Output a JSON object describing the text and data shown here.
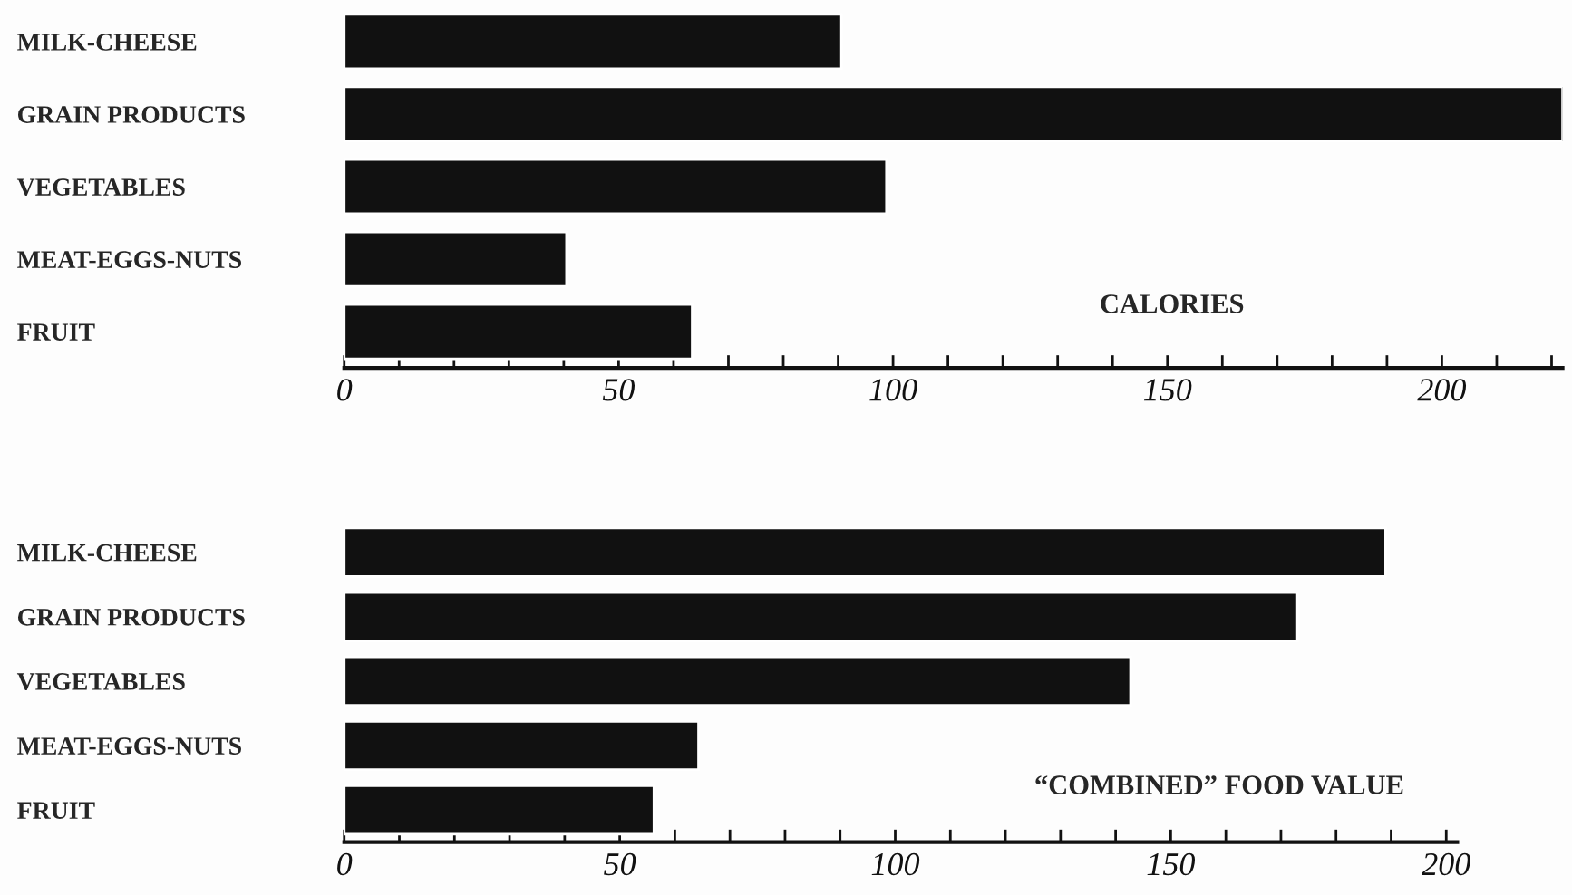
{
  "chart_data": [
    {
      "type": "bar",
      "orientation": "horizontal",
      "xlabel": "CALORIES",
      "categories": [
        "MILK-CHEESE",
        "GRAIN PRODUCTS",
        "VEGETABLES",
        "MEAT-EGGS-NUTS",
        "FRUIT"
      ],
      "values": [
        90.6,
        222,
        98.8,
        40.5,
        63.4
      ],
      "color": "#111111",
      "xlim": [
        0,
        222
      ],
      "xticks": [
        0,
        {
          "value": 10,
          "label": null
        },
        {
          "value": 20,
          "label": null
        },
        {
          "value": 30,
          "label": null
        },
        {
          "value": 40,
          "label": null
        },
        50,
        {
          "value": 60,
          "label": null
        },
        {
          "value": 70,
          "label": null
        },
        {
          "value": 80,
          "label": null
        },
        {
          "value": 90,
          "label": null
        },
        100,
        {
          "value": 110,
          "label": null
        },
        {
          "value": 120,
          "label": null
        },
        {
          "value": 130,
          "label": null
        },
        {
          "value": 140,
          "label": null
        },
        150,
        {
          "value": 160,
          "label": null
        },
        {
          "value": 170,
          "label": null
        },
        {
          "value": 180,
          "label": null
        },
        {
          "value": 190,
          "label": null
        },
        200,
        {
          "value": 210,
          "label": null
        },
        {
          "value": 220,
          "label": null
        }
      ],
      "grid": false,
      "legend": false
    },
    {
      "type": "bar",
      "orientation": "horizontal",
      "xlabel": "“COMBINED” FOOD VALUE",
      "categories": [
        "MILK-CHEESE",
        "GRAIN PRODUCTS",
        "VEGETABLES",
        "MEAT-EGGS-NUTS",
        "FRUIT"
      ],
      "values": [
        189,
        173,
        142.7,
        64.3,
        56.2
      ],
      "color": "#111111",
      "xlim": [
        0,
        202
      ],
      "xticks": [
        0,
        {
          "value": 10,
          "label": null
        },
        {
          "value": 20,
          "label": null
        },
        {
          "value": 30,
          "label": null
        },
        {
          "value": 40,
          "label": null
        },
        50,
        {
          "value": 60,
          "label": null
        },
        {
          "value": 70,
          "label": null
        },
        {
          "value": 80,
          "label": null
        },
        {
          "value": 90,
          "label": null
        },
        100,
        {
          "value": 110,
          "label": null
        },
        {
          "value": 120,
          "label": null
        },
        {
          "value": 130,
          "label": null
        },
        {
          "value": 140,
          "label": null
        },
        150,
        {
          "value": 160,
          "label": null
        },
        {
          "value": 170,
          "label": null
        },
        {
          "value": 180,
          "label": null
        },
        {
          "value": 190,
          "label": null
        },
        200
      ],
      "grid": false,
      "legend": false
    }
  ]
}
